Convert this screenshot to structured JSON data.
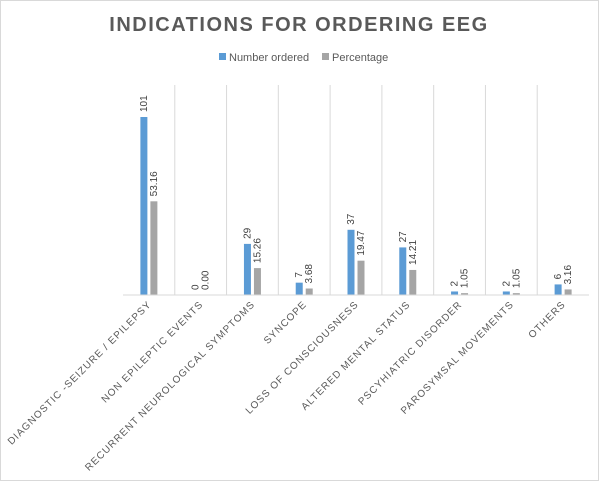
{
  "chart_data": {
    "type": "bar",
    "title": "INDICATIONS FOR ORDERING EEG",
    "categories": [
      "DIAGNOSTIC -SEIZURE / EPILEPSY",
      "NON EPILEPTIC EVENTS",
      "RECURRENT NEUROLOGICAL SYMPTOMS",
      "SYNCOPE",
      "LOSS OF CONSCIOUSNESS",
      "ALTERED MENTAL STATUS",
      "PSCYHIATRIC DISORDER",
      "PAROSYMSAL MOVEMENTS",
      "OTHERS"
    ],
    "series": [
      {
        "name": "Number ordered",
        "color": "#5b9bd5",
        "values": [
          101,
          0,
          29,
          7,
          37,
          27,
          2,
          2,
          6
        ],
        "labels": [
          "101",
          "0",
          "29",
          "7",
          "37",
          "27",
          "2",
          "2",
          "6"
        ]
      },
      {
        "name": "Percentage",
        "color": "#a5a5a5",
        "values": [
          53.16,
          0.0,
          15.26,
          3.68,
          19.47,
          14.21,
          1.05,
          1.05,
          3.16
        ],
        "labels": [
          "53.16",
          "0.00",
          "15.26",
          "3.68",
          "19.47",
          "14.21",
          "1.05",
          "1.05",
          "3.16"
        ]
      }
    ],
    "ylim": [
      0,
      101
    ],
    "legend_position": "top",
    "grid": false
  }
}
